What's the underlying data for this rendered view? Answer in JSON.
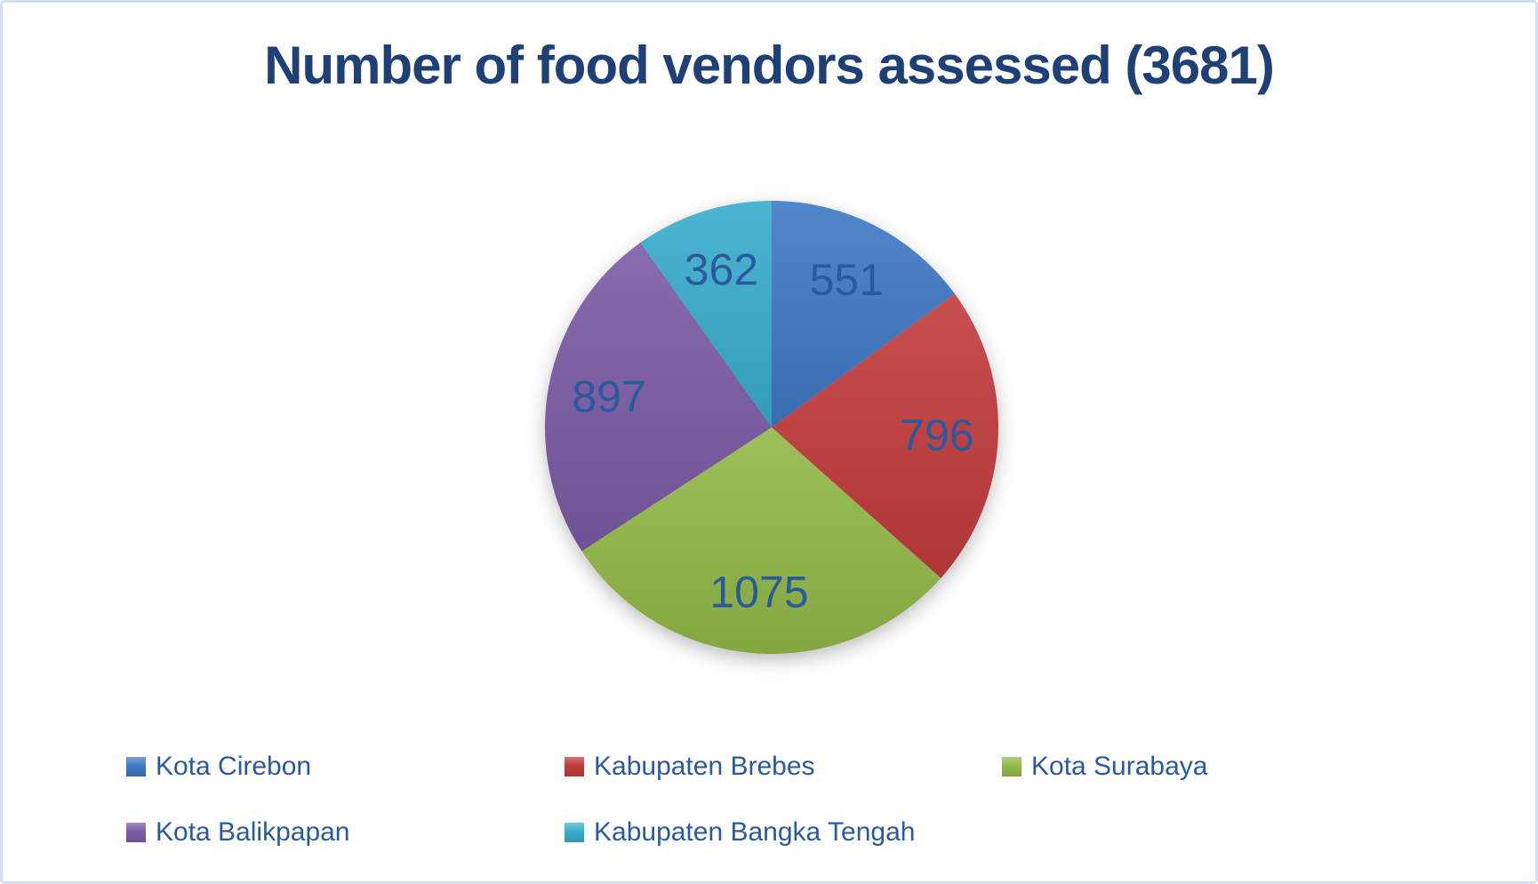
{
  "chart_data": {
    "type": "pie",
    "title": "Number of food vendors assessed (3681)",
    "total": 3681,
    "start_angle_deg": 0,
    "direction": "clockwise",
    "legend_position": "bottom",
    "label_radius_ratio": 0.73,
    "slices": [
      {
        "label": "Kota Cirebon",
        "value": 551,
        "color": "#3E79C4"
      },
      {
        "label": "Kabupaten Brebes",
        "value": 796,
        "color": "#C23B3C"
      },
      {
        "label": "Kota Surabaya",
        "value": 1075,
        "color": "#93B948"
      },
      {
        "label": "Kota Balikpapan",
        "value": 897,
        "color": "#7B5BA6"
      },
      {
        "label": "Kabupaten Bangka Tengah",
        "value": 362,
        "color": "#39ADCC"
      }
    ]
  },
  "colors": {
    "title_text": "#1F4077",
    "slice_label_text": "#2A5A9B",
    "legend_text": "#2A5A9B",
    "frame_border": "#D2DFF0",
    "background": "#FFFFFF"
  }
}
